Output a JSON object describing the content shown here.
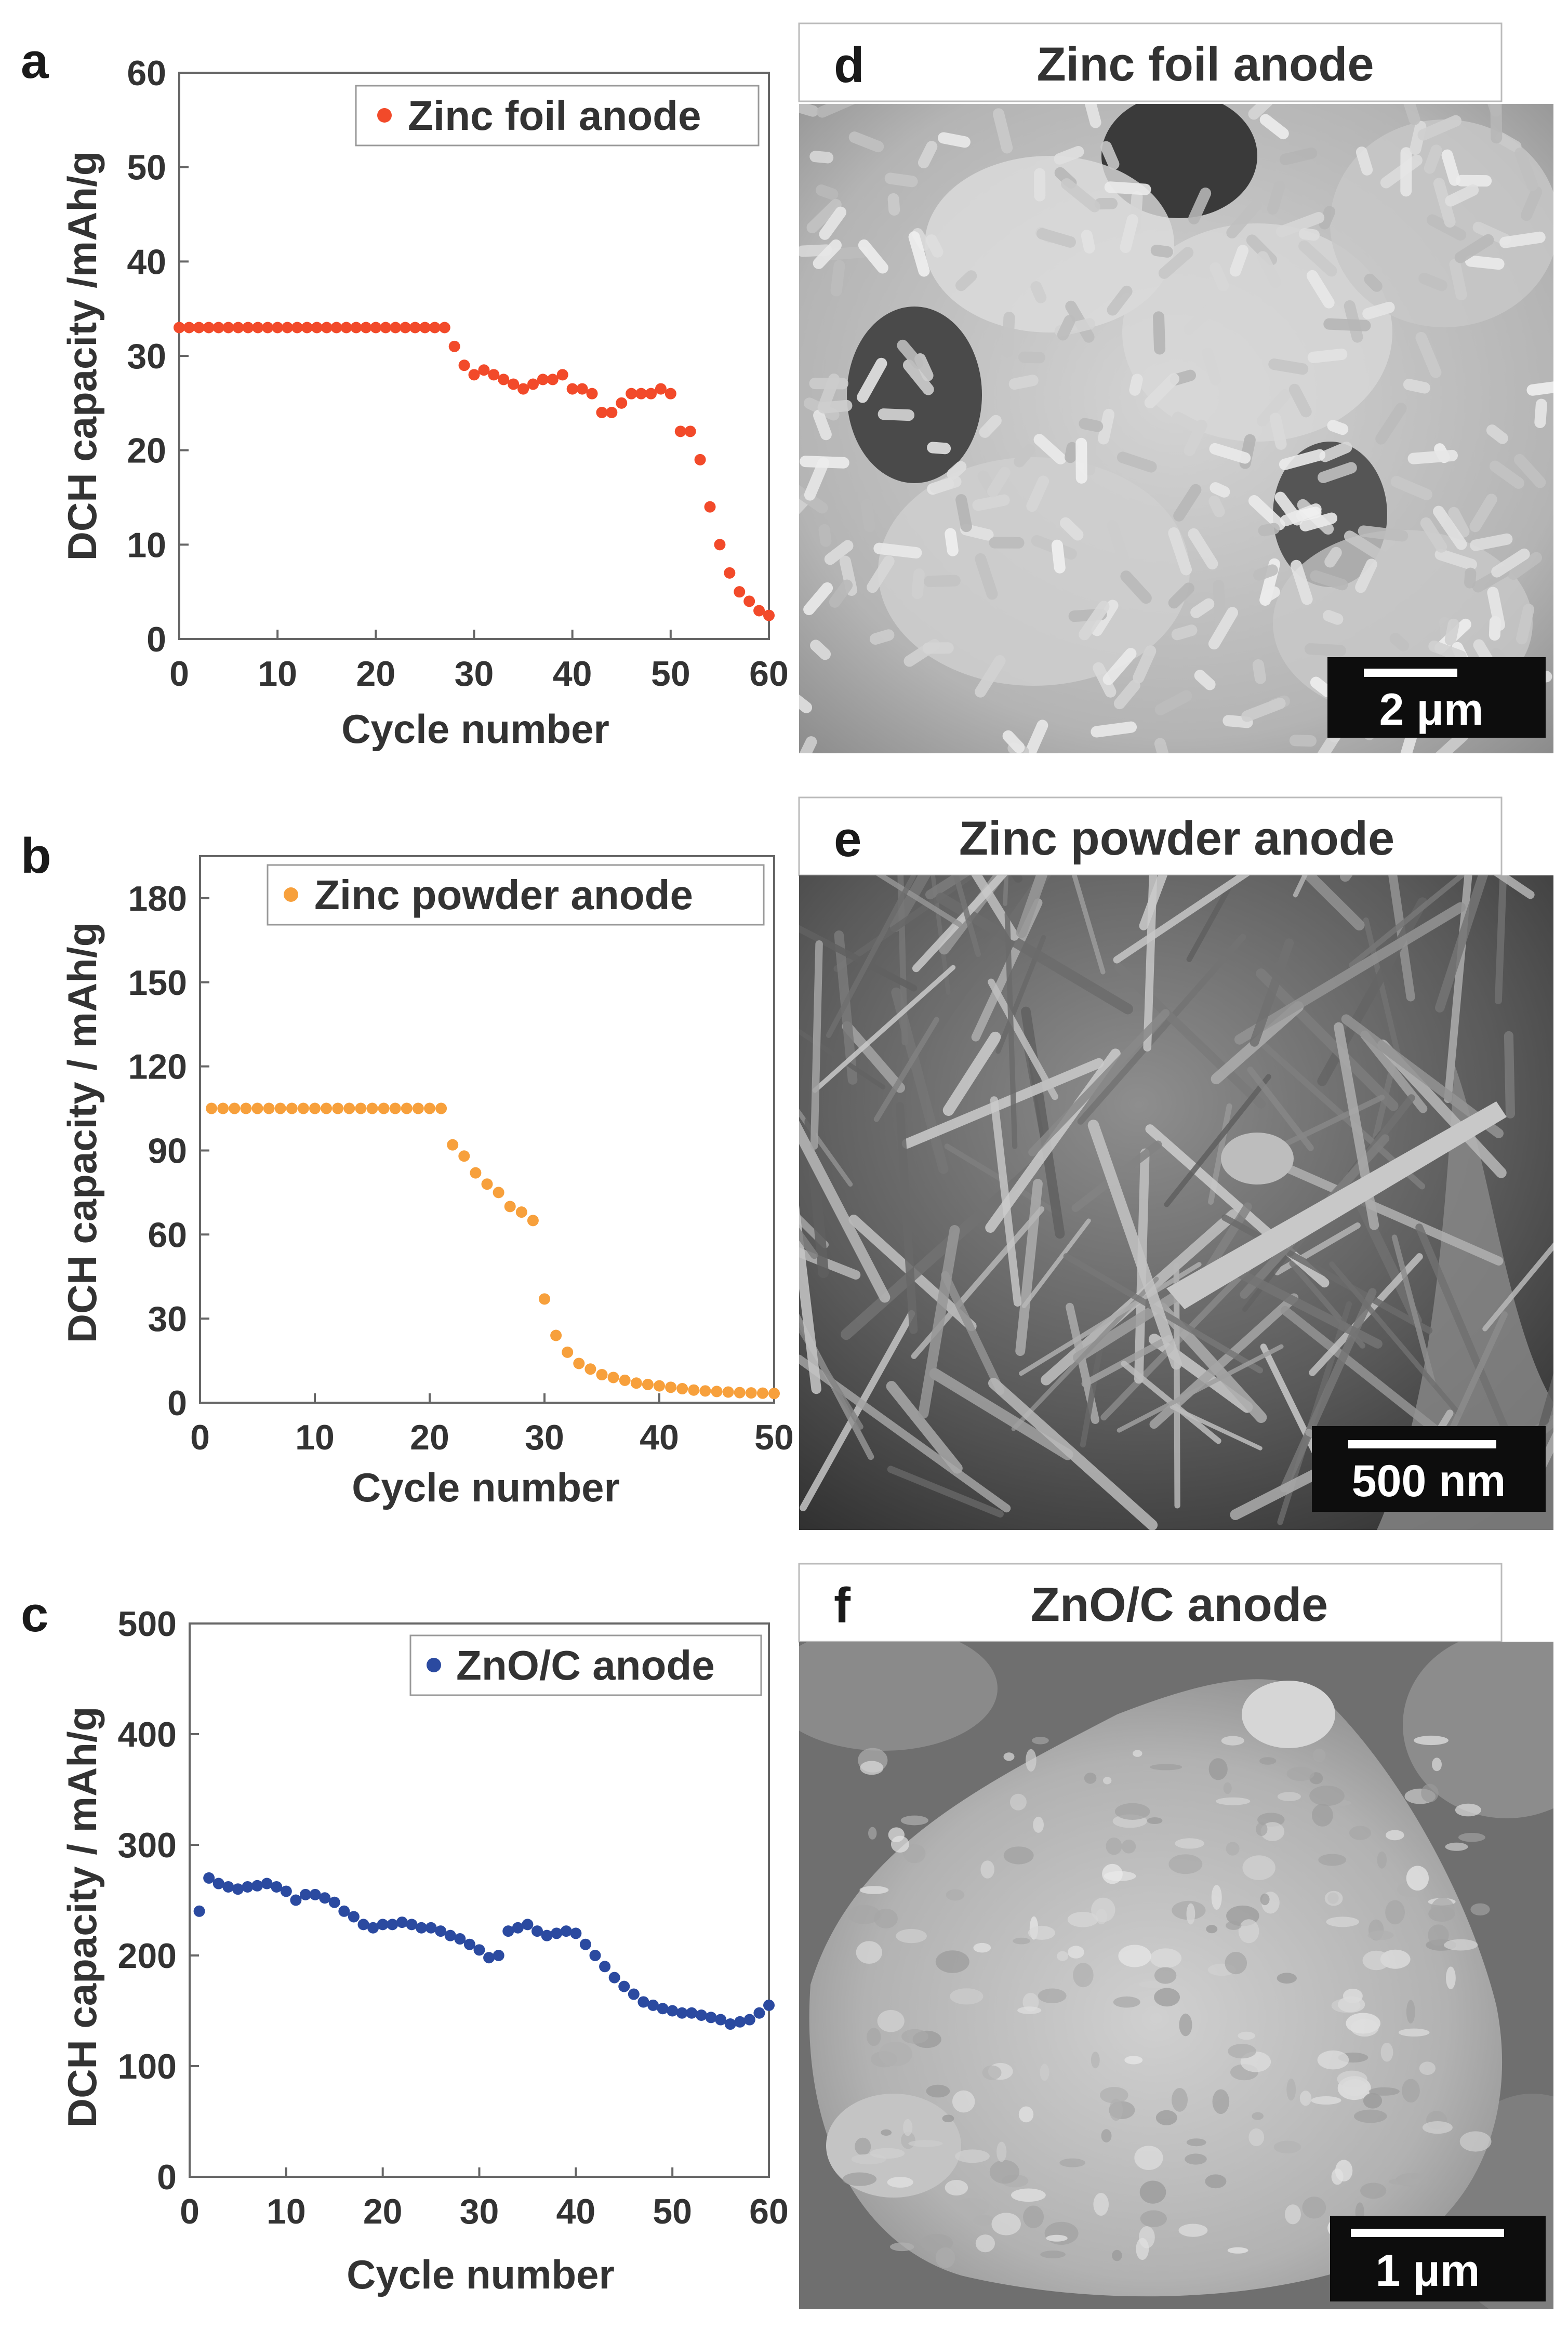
{
  "chart_data": [
    {
      "panel": "a",
      "type": "scatter",
      "xlabel": "Cycle number",
      "ylabel": "DCH capacity /mAh/g",
      "xlim": [
        0,
        60
      ],
      "ylim": [
        0,
        60
      ],
      "xticks": [
        0,
        10,
        20,
        30,
        40,
        50,
        60
      ],
      "yticks": [
        0,
        10,
        20,
        30,
        40,
        50,
        60
      ],
      "legend_position": "top-right",
      "series": [
        {
          "name": "Zinc foil anode",
          "color": "#f24a2a",
          "x": [
            0,
            1,
            2,
            3,
            4,
            5,
            6,
            7,
            8,
            9,
            10,
            11,
            12,
            13,
            14,
            15,
            16,
            17,
            18,
            19,
            20,
            21,
            22,
            23,
            24,
            25,
            26,
            27,
            28,
            29,
            30,
            31,
            32,
            33,
            34,
            35,
            36,
            37,
            38,
            39,
            40,
            41,
            42,
            43,
            44,
            45,
            46,
            47,
            48,
            49,
            50,
            51,
            52,
            53,
            54,
            55,
            56,
            57,
            58,
            59,
            60
          ],
          "y": [
            33,
            33,
            33,
            33,
            33,
            33,
            33,
            33,
            33,
            33,
            33,
            33,
            33,
            33,
            33,
            33,
            33,
            33,
            33,
            33,
            33,
            33,
            33,
            33,
            33,
            33,
            33,
            33,
            31,
            29,
            28,
            28.5,
            28,
            27.5,
            27,
            26.5,
            27,
            27.5,
            27.5,
            28,
            26.5,
            26.5,
            26,
            24,
            24,
            25,
            26,
            26,
            26,
            26.5,
            26,
            22,
            22,
            19,
            14,
            10,
            7,
            5,
            4,
            3,
            2.5
          ]
        }
      ]
    },
    {
      "panel": "b",
      "type": "scatter",
      "xlabel": "Cycle number",
      "ylabel": "DCH capacity / mAh/g",
      "xlim": [
        0,
        50
      ],
      "ylim": [
        0,
        195
      ],
      "xticks": [
        0,
        10,
        20,
        30,
        40,
        50
      ],
      "yticks": [
        0,
        30,
        60,
        90,
        120,
        150,
        180
      ],
      "legend_position": "top-right",
      "series": [
        {
          "name": "Zinc powder anode",
          "color": "#f7a03c",
          "x": [
            1,
            2,
            3,
            4,
            5,
            6,
            7,
            8,
            9,
            10,
            11,
            12,
            13,
            14,
            15,
            16,
            17,
            18,
            19,
            20,
            21,
            22,
            23,
            24,
            25,
            26,
            27,
            28,
            29,
            30,
            31,
            32,
            33,
            34,
            35,
            36,
            37,
            38,
            39,
            40,
            41,
            42,
            43,
            44,
            45,
            46,
            47,
            48,
            49,
            50
          ],
          "y": [
            105,
            105,
            105,
            105,
            105,
            105,
            105,
            105,
            105,
            105,
            105,
            105,
            105,
            105,
            105,
            105,
            105,
            105,
            105,
            105,
            105,
            92,
            88,
            82,
            78,
            75,
            70,
            68,
            65,
            37,
            24,
            18,
            14,
            12,
            10,
            9,
            8,
            7,
            6.5,
            6,
            5.5,
            5,
            4.5,
            4.2,
            4,
            3.8,
            3.6,
            3.5,
            3.4,
            3.3
          ]
        }
      ]
    },
    {
      "panel": "c",
      "type": "scatter",
      "xlabel": "Cycle number",
      "ylabel": "DCH capacity / mAh/g",
      "xlim": [
        0,
        60
      ],
      "ylim": [
        0,
        500
      ],
      "xticks": [
        0,
        10,
        20,
        30,
        40,
        50,
        60
      ],
      "yticks": [
        0,
        100,
        200,
        300,
        400,
        500
      ],
      "legend_position": "top-right",
      "series": [
        {
          "name": "ZnO/C anode",
          "color": "#2b4aa0",
          "x": [
            1,
            2,
            3,
            4,
            5,
            6,
            7,
            8,
            9,
            10,
            11,
            12,
            13,
            14,
            15,
            16,
            17,
            18,
            19,
            20,
            21,
            22,
            23,
            24,
            25,
            26,
            27,
            28,
            29,
            30,
            31,
            32,
            33,
            34,
            35,
            36,
            37,
            38,
            39,
            40,
            41,
            42,
            43,
            44,
            45,
            46,
            47,
            48,
            49,
            50,
            51,
            52,
            53,
            54,
            55,
            56,
            57,
            58,
            59,
            60
          ],
          "y": [
            240,
            270,
            265,
            262,
            260,
            262,
            263,
            265,
            262,
            258,
            250,
            255,
            255,
            252,
            248,
            240,
            235,
            228,
            225,
            228,
            228,
            230,
            228,
            225,
            225,
            222,
            218,
            215,
            210,
            205,
            198,
            200,
            222,
            225,
            228,
            222,
            218,
            220,
            222,
            220,
            210,
            200,
            190,
            180,
            172,
            165,
            158,
            155,
            152,
            150,
            148,
            148,
            146,
            144,
            142,
            138,
            140,
            142,
            148,
            155
          ]
        }
      ]
    }
  ],
  "panels": {
    "a": {
      "letter": "a"
    },
    "b": {
      "letter": "b"
    },
    "c": {
      "letter": "c"
    }
  },
  "sem": {
    "d": {
      "letter": "d",
      "title": "Zinc foil anode",
      "scale": "2 μm",
      "tone": "light-rods"
    },
    "e": {
      "letter": "e",
      "title": "Zinc powder anode",
      "scale": "500 nm",
      "tone": "dark-needles"
    },
    "f": {
      "letter": "f",
      "title": "ZnO/C  anode",
      "scale": "1 μm",
      "tone": "particle"
    }
  }
}
